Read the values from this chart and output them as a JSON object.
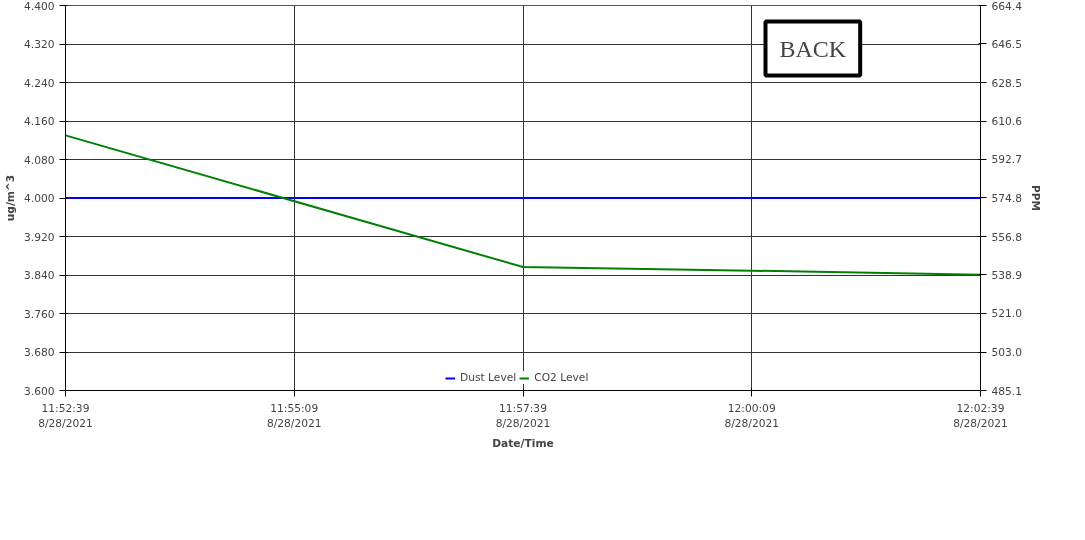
{
  "chart_data": {
    "type": "line",
    "xlabel": "Date/Time",
    "ylabel": "ug/m^3",
    "y2label": "PPM",
    "annotations": [
      "BACK"
    ],
    "x": [
      "2021-08-28T11:52:39",
      "2021-08-28T11:57:39",
      "2021-08-28T12:00:09",
      "2021-08-28T12:02:39"
    ],
    "series": [
      {
        "name": "Dust Level",
        "color": "#0000ff",
        "values": [
          4.0,
          4.0,
          4.0,
          4.0
        ]
      },
      {
        "name": "CO2 Level",
        "color": "#008000",
        "axis": "y2",
        "values": [
          603.9,
          542.6,
          540.9,
          539.0
        ]
      }
    ],
    "xlim": [
      "2021-08-28T11:52:39",
      "2021-08-28T12:02:39"
    ],
    "xticks": [
      {
        "value": "2021-08-28T11:52:39",
        "label": "11:52:39\n8/28/2021"
      },
      {
        "value": "2021-08-28T11:55:09",
        "label": "11:55:09\n8/28/2021"
      },
      {
        "value": "2021-08-28T11:57:39",
        "label": "11:57:39\n8/28/2021"
      },
      {
        "value": "2021-08-28T12:00:09",
        "label": "12:00:09\n8/28/2021"
      },
      {
        "value": "2021-08-28T12:02:39",
        "label": "12:02:39\n8/28/2021"
      }
    ],
    "ylim": [
      3.6,
      4.4
    ],
    "yticks": [
      {
        "value": 3.6,
        "label": "3.600"
      },
      {
        "value": 3.68,
        "label": "3.680"
      },
      {
        "value": 3.76,
        "label": "3.760"
      },
      {
        "value": 3.84,
        "label": "3.840"
      },
      {
        "value": 3.92,
        "label": "3.920"
      },
      {
        "value": 4.0,
        "label": "4.000"
      },
      {
        "value": 4.08,
        "label": "4.080"
      },
      {
        "value": 4.16,
        "label": "4.160"
      },
      {
        "value": 4.24,
        "label": "4.240"
      },
      {
        "value": 4.32,
        "label": "4.320"
      },
      {
        "value": 4.4,
        "label": "4.400"
      }
    ],
    "y2lim": [
      485.1,
      664.4
    ],
    "y2ticks": [
      {
        "value": 485.1,
        "label": "485.1"
      },
      {
        "value": 503,
        "label": "503.0"
      },
      {
        "value": 521,
        "label": "521.0"
      },
      {
        "value": 538.9,
        "label": "538.9"
      },
      {
        "value": 556.8,
        "label": "556.8"
      },
      {
        "value": 574.8,
        "label": "574.8"
      },
      {
        "value": 592.7,
        "label": "592.7"
      },
      {
        "value": 610.6,
        "label": "610.6"
      },
      {
        "value": 628.5,
        "label": "628.5"
      },
      {
        "value": 646.5,
        "label": "646.5"
      },
      {
        "value": 664.4,
        "label": "664.4"
      }
    ],
    "grid": true,
    "legend": "bottom"
  }
}
